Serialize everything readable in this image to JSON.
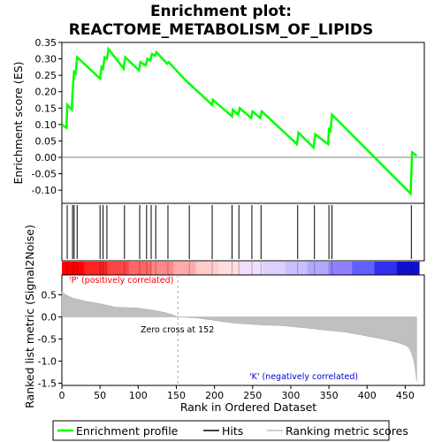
{
  "chart_data": {
    "type": "line",
    "title_line1": "Enrichment plot:",
    "title_line2": "REACTOME_METABOLISM_OF_LIPIDS",
    "es_panel": {
      "ylabel": "Enrichment score (ES)",
      "ylim": [
        -0.14,
        0.35
      ],
      "yticks": [
        -0.1,
        -0.05,
        0.0,
        0.05,
        0.1,
        0.15,
        0.2,
        0.25,
        0.3,
        0.35
      ],
      "ytick_labels": [
        "-0.10",
        "-0.05",
        "0.00",
        "0.05",
        "0.10",
        "0.15",
        "0.20",
        "0.25",
        "0.30",
        "0.35"
      ],
      "series_name": "Enrichment profile",
      "color": "#00ff00",
      "points": [
        [
          0,
          0.1
        ],
        [
          6,
          0.09
        ],
        [
          7,
          0.16
        ],
        [
          13,
          0.145
        ],
        [
          14,
          0.2
        ],
        [
          16,
          0.26
        ],
        [
          18,
          0.255
        ],
        [
          20,
          0.305
        ],
        [
          50,
          0.24
        ],
        [
          52,
          0.275
        ],
        [
          54,
          0.27
        ],
        [
          56,
          0.305
        ],
        [
          59,
          0.3
        ],
        [
          61,
          0.33
        ],
        [
          81,
          0.27
        ],
        [
          83,
          0.305
        ],
        [
          101,
          0.265
        ],
        [
          103,
          0.29
        ],
        [
          110,
          0.28
        ],
        [
          112,
          0.3
        ],
        [
          116,
          0.295
        ],
        [
          118,
          0.315
        ],
        [
          122,
          0.31
        ],
        [
          124,
          0.32
        ],
        [
          138,
          0.285
        ],
        [
          140,
          0.29
        ],
        [
          162,
          0.235
        ],
        [
          197,
          0.16
        ],
        [
          198,
          0.175
        ],
        [
          223,
          0.125
        ],
        [
          224,
          0.145
        ],
        [
          231,
          0.13
        ],
        [
          233,
          0.15
        ],
        [
          248,
          0.12
        ],
        [
          250,
          0.14
        ],
        [
          260,
          0.12
        ],
        [
          262,
          0.14
        ],
        [
          308,
          0.04
        ],
        [
          310,
          0.075
        ],
        [
          330,
          0.03
        ],
        [
          332,
          0.07
        ],
        [
          349,
          0.04
        ],
        [
          350,
          0.085
        ],
        [
          352,
          0.08
        ],
        [
          354,
          0.13
        ],
        [
          457,
          -0.11
        ],
        [
          459,
          0.015
        ],
        [
          465,
          0.005
        ]
      ]
    },
    "hits": [
      7,
      14,
      16,
      20,
      50,
      54,
      59,
      82,
      102,
      111,
      117,
      123,
      139,
      167,
      197,
      223,
      232,
      249,
      261,
      309,
      331,
      350,
      354,
      458
    ],
    "color_bar": {
      "colors": [
        "#ff0000",
        "#ff2222",
        "#ff4444",
        "#ff6666",
        "#ff8888",
        "#ffaaaa",
        "#ffcccc",
        "#ffdddd",
        "#f0ddff",
        "#ddd0ff",
        "#c8c0ff",
        "#b0a8ff",
        "#9080ff",
        "#6060ff",
        "#3030ee",
        "#1010cc"
      ]
    },
    "metric_panel": {
      "ylabel": "Ranked list metric (Signal2Noise)",
      "ylim": [
        -1.55,
        0.95
      ],
      "yticks": [
        0.5,
        0.0,
        -0.5,
        -1.0,
        -1.5
      ],
      "ytick_labels": [
        "0.5",
        "0.0",
        "-0.5",
        "-1.0",
        "-1.5"
      ],
      "series_name": "Ranking metric scores",
      "color": "#c0c0c0",
      "profile": [
        [
          0,
          0.58
        ],
        [
          5,
          0.5
        ],
        [
          15,
          0.42
        ],
        [
          30,
          0.36
        ],
        [
          50,
          0.3
        ],
        [
          60,
          0.26
        ],
        [
          70,
          0.22
        ],
        [
          100,
          0.2
        ],
        [
          120,
          0.15
        ],
        [
          135,
          0.1
        ],
        [
          145,
          0.05
        ],
        [
          152,
          0.0
        ],
        [
          175,
          -0.02
        ],
        [
          200,
          -0.08
        ],
        [
          225,
          -0.14
        ],
        [
          260,
          -0.18
        ],
        [
          290,
          -0.2
        ],
        [
          320,
          -0.25
        ],
        [
          345,
          -0.3
        ],
        [
          370,
          -0.34
        ],
        [
          390,
          -0.4
        ],
        [
          420,
          -0.5
        ],
        [
          440,
          -0.58
        ],
        [
          450,
          -0.64
        ],
        [
          455,
          -0.7
        ],
        [
          459,
          -0.85
        ],
        [
          462,
          -1.05
        ],
        [
          464,
          -1.3
        ],
        [
          465,
          -1.45
        ]
      ]
    },
    "xaxis": {
      "xlabel": "Rank in Ordered Dataset",
      "xlim": [
        0,
        475
      ],
      "xticks": [
        0,
        50,
        100,
        150,
        200,
        250,
        300,
        350,
        400,
        450
      ],
      "xtick_labels": [
        "0",
        "50",
        "100",
        "150",
        "200",
        "250",
        "300",
        "350",
        "400",
        "450"
      ]
    },
    "annotations": {
      "positive": "'P' (positively correlated)",
      "zero_cross": "Zero cross at 152",
      "negative": "'K' (negatively correlated)",
      "positive_color": "#ff0000",
      "negative_color": "#0000cc",
      "zero_cross_rank": 152
    },
    "legend": {
      "placement": "bottom",
      "entries": [
        {
          "label": "Enrichment profile",
          "color": "#00ff00"
        },
        {
          "label": "Hits",
          "color": "#000000"
        },
        {
          "label": "Ranking metric scores",
          "color": "#c0c0c0"
        }
      ]
    }
  }
}
